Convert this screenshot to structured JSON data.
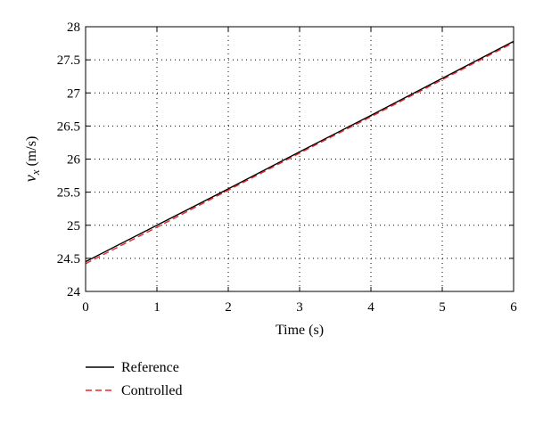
{
  "chart_data": {
    "type": "line",
    "title": "",
    "xlabel": "Time (s)",
    "ylabel_main": "v",
    "ylabel_sub": "x",
    "ylabel_units": "(m/s)",
    "xlim": [
      0,
      6
    ],
    "ylim": [
      24,
      28
    ],
    "x_ticks": [
      0,
      1,
      2,
      3,
      4,
      5,
      6
    ],
    "x_tick_labels": [
      "0",
      "1",
      "2",
      "3",
      "4",
      "5",
      "6"
    ],
    "y_ticks": [
      24,
      24.5,
      25,
      25.5,
      26,
      26.5,
      27,
      27.5,
      28
    ],
    "y_tick_labels": [
      "24",
      "24.5",
      "25",
      "25.5",
      "26",
      "26.5",
      "27",
      "27.5",
      "28"
    ],
    "grid": true,
    "legend_position": "bottom-left, below axes",
    "series": [
      {
        "name": "Reference",
        "color": "#000000",
        "style": "solid",
        "x": [
          0,
          1,
          2,
          3,
          4,
          5,
          6
        ],
        "values": [
          24.45,
          25.0,
          25.55,
          26.11,
          26.66,
          27.22,
          27.78
        ]
      },
      {
        "name": "Controlled",
        "color": "#e8282b",
        "style": "dashed",
        "x": [
          0,
          1,
          2,
          3,
          4,
          5,
          6
        ],
        "values": [
          24.42,
          24.97,
          25.53,
          26.09,
          26.64,
          27.2,
          27.76
        ]
      }
    ]
  }
}
